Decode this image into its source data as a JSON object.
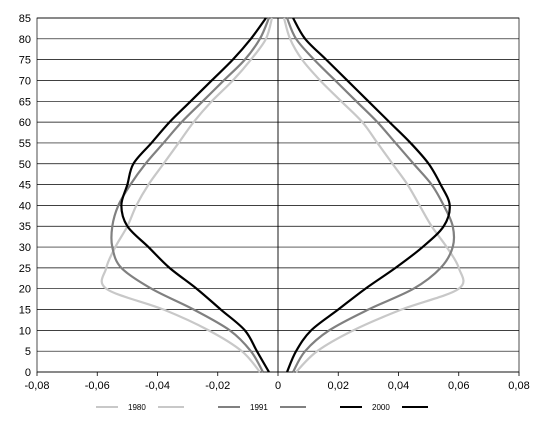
{
  "chart_data": {
    "type": "line",
    "title": "",
    "xlabel": "",
    "ylabel": "",
    "xlim": [
      -0.08,
      0.08
    ],
    "ylim": [
      0,
      85
    ],
    "x_ticks": [
      -0.08,
      -0.06,
      -0.04,
      -0.02,
      0,
      0.02,
      0.04,
      0.06,
      0.08
    ],
    "x_tick_labels": [
      "-0,08",
      "-0,06",
      "-0,04",
      "-0,02",
      "0",
      "0,02",
      "0,04",
      "0,06",
      "0,08"
    ],
    "y_ticks": [
      0,
      5,
      10,
      15,
      20,
      25,
      30,
      35,
      40,
      45,
      50,
      55,
      60,
      65,
      70,
      75,
      80,
      85
    ],
    "y_tick_labels": [
      "0",
      "5",
      "10",
      "15",
      "20",
      "25",
      "30",
      "35",
      "40",
      "45",
      "50",
      "55",
      "60",
      "65",
      "70",
      "75",
      "80",
      "85"
    ],
    "grid": "horizontal",
    "legend_position": "bottom",
    "series": [
      {
        "name": "1980",
        "color": "#c8c8c8",
        "left": {
          "age": [
            0,
            5,
            10,
            15,
            20,
            25,
            30,
            35,
            40,
            45,
            50,
            55,
            60,
            65,
            70,
            75,
            80,
            85
          ],
          "value": [
            -0.006,
            -0.012,
            -0.023,
            -0.038,
            -0.057,
            -0.057,
            -0.054,
            -0.05,
            -0.047,
            -0.043,
            -0.038,
            -0.033,
            -0.028,
            -0.022,
            -0.015,
            -0.009,
            -0.004,
            -0.002
          ]
        },
        "right": {
          "age": [
            0,
            5,
            10,
            15,
            20,
            25,
            30,
            35,
            40,
            45,
            50,
            55,
            60,
            65,
            70,
            75,
            80,
            85
          ],
          "value": [
            0.006,
            0.013,
            0.025,
            0.041,
            0.06,
            0.06,
            0.056,
            0.051,
            0.047,
            0.043,
            0.038,
            0.033,
            0.028,
            0.021,
            0.014,
            0.008,
            0.004,
            0.002
          ]
        }
      },
      {
        "name": "1991",
        "color": "#808080",
        "left": {
          "age": [
            0,
            5,
            10,
            15,
            20,
            25,
            30,
            35,
            40,
            45,
            50,
            55,
            60,
            65,
            70,
            75,
            80,
            85
          ],
          "value": [
            -0.005,
            -0.009,
            -0.016,
            -0.028,
            -0.042,
            -0.052,
            -0.055,
            -0.055,
            -0.053,
            -0.049,
            -0.044,
            -0.038,
            -0.032,
            -0.025,
            -0.018,
            -0.011,
            -0.006,
            -0.003
          ]
        },
        "right": {
          "age": [
            0,
            5,
            10,
            15,
            20,
            25,
            30,
            35,
            40,
            45,
            50,
            55,
            60,
            65,
            70,
            75,
            80,
            85
          ],
          "value": [
            0.005,
            0.009,
            0.017,
            0.03,
            0.045,
            0.054,
            0.058,
            0.058,
            0.055,
            0.051,
            0.045,
            0.039,
            0.033,
            0.026,
            0.019,
            0.012,
            0.006,
            0.003
          ]
        }
      },
      {
        "name": "2000",
        "color": "#000000",
        "left": {
          "age": [
            0,
            5,
            10,
            15,
            20,
            25,
            30,
            35,
            40,
            45,
            50,
            55,
            60,
            65,
            70,
            75,
            80,
            85
          ],
          "value": [
            -0.003,
            -0.007,
            -0.011,
            -0.019,
            -0.027,
            -0.036,
            -0.043,
            -0.05,
            -0.052,
            -0.05,
            -0.048,
            -0.042,
            -0.036,
            -0.029,
            -0.022,
            -0.015,
            -0.009,
            -0.004
          ]
        },
        "right": {
          "age": [
            0,
            5,
            10,
            15,
            20,
            25,
            30,
            35,
            40,
            45,
            50,
            55,
            60,
            65,
            70,
            75,
            80,
            85
          ],
          "value": [
            0.003,
            0.006,
            0.011,
            0.02,
            0.029,
            0.039,
            0.048,
            0.055,
            0.057,
            0.054,
            0.05,
            0.044,
            0.037,
            0.03,
            0.023,
            0.016,
            0.009,
            0.005
          ]
        }
      }
    ]
  }
}
